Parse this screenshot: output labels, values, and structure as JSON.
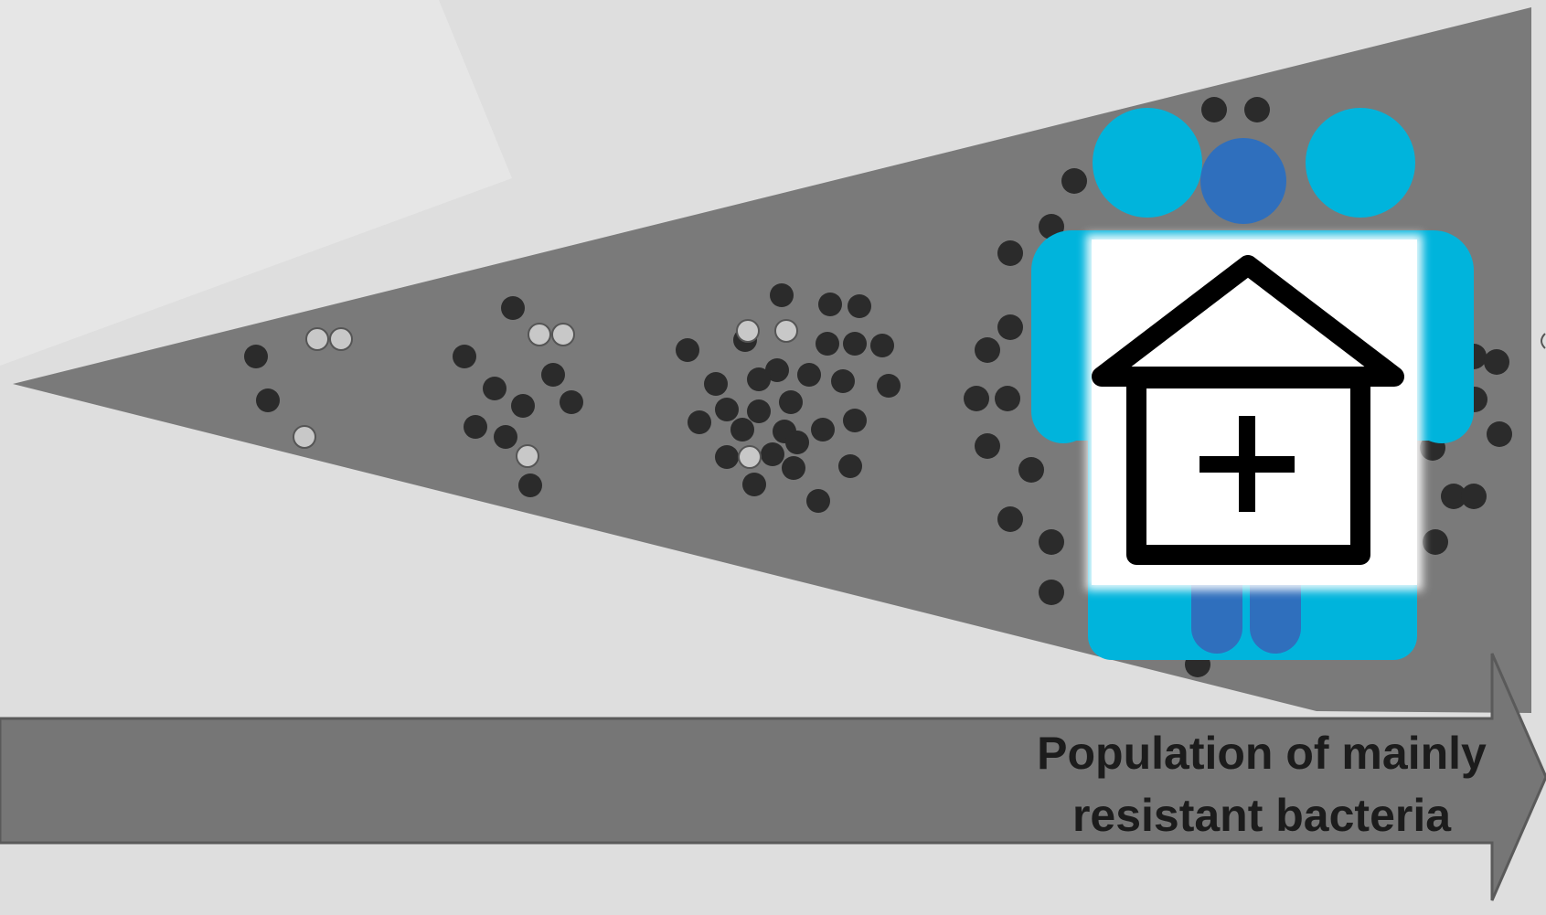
{
  "diagram": {
    "arrow_label": {
      "line1": "Population of mainly",
      "line2": "resistant bacteria"
    },
    "icon": "hospital-with-people-icon",
    "colors": {
      "background": "#dedede",
      "wedge": "#7a7a7a",
      "arrow": "#767676",
      "resistant_bacterium": "#2b2b2b",
      "susceptible_bacterium": "#c8c8c8",
      "people_light": "#00b4dc",
      "people_dark": "#2f6fbd",
      "hospital_outline": "#000000",
      "hospital_fill": "#ffffff"
    }
  }
}
